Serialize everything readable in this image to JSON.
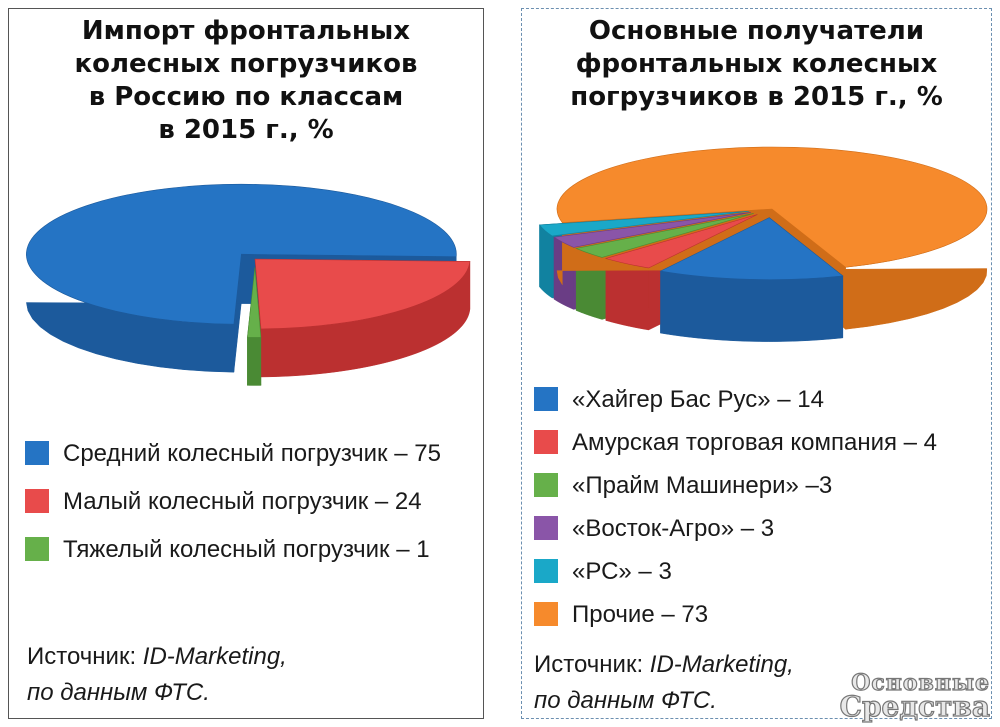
{
  "chart_data": [
    {
      "type": "pie",
      "title": "Импорт фронтальных колесных погрузчиков в Россию по классам в 2015 г., %",
      "title_lines": [
        "Импорт фронтальных",
        "колесных погрузчиков",
        "в Россию по классам",
        "в 2015 г., %"
      ],
      "slices": [
        {
          "label": "Средний колесный погрузчик – 75",
          "value": 75,
          "color": "#2574c4",
          "side": "#1c5a9c"
        },
        {
          "label": "Малый  колесный погрузчик – 24",
          "value": 24,
          "color": "#e84b4b",
          "side": "#bb3030"
        },
        {
          "label": "Тяжелый колесный погрузчик – 1",
          "value": 1,
          "color": "#66b04a",
          "side": "#4a8a34"
        }
      ],
      "source_prefix": "Источник: ",
      "source_name": "ID-Marketing,",
      "source_line2": "по данным ФТС."
    },
    {
      "type": "pie",
      "title": "Основные получатели фронтальных колесных погрузчиков в 2015 г., %",
      "title_lines": [
        "Основные получатели",
        "фронтальных колесных",
        "погрузчиков в 2015 г., %"
      ],
      "slices": [
        {
          "label": "«Хайгер Бас Рус» – 14",
          "value": 14,
          "color": "#2574c4",
          "side": "#1c5a9c"
        },
        {
          "label": "Амурская торговая компания – 4",
          "value": 4,
          "color": "#e84b4b",
          "side": "#bb3030"
        },
        {
          "label": "«Прайм Машинери» –3",
          "value": 3,
          "color": "#66b04a",
          "side": "#4a8a34"
        },
        {
          "label": "«Восток-Агро» – 3",
          "value": 3,
          "color": "#8a55a8",
          "side": "#6a3d85"
        },
        {
          "label": "«РС» – 3",
          "value": 3,
          "color": "#1aa8c8",
          "side": "#1182a0"
        },
        {
          "label": "Прочие – 73",
          "value": 73,
          "color": "#f68a2c",
          "side": "#d06d18"
        }
      ],
      "source_prefix": "Источник: ",
      "source_name": "ID-Marketing,",
      "source_line2": "по данным ФТС."
    }
  ],
  "watermark": {
    "line1": "Основные",
    "line2": "Средства"
  }
}
